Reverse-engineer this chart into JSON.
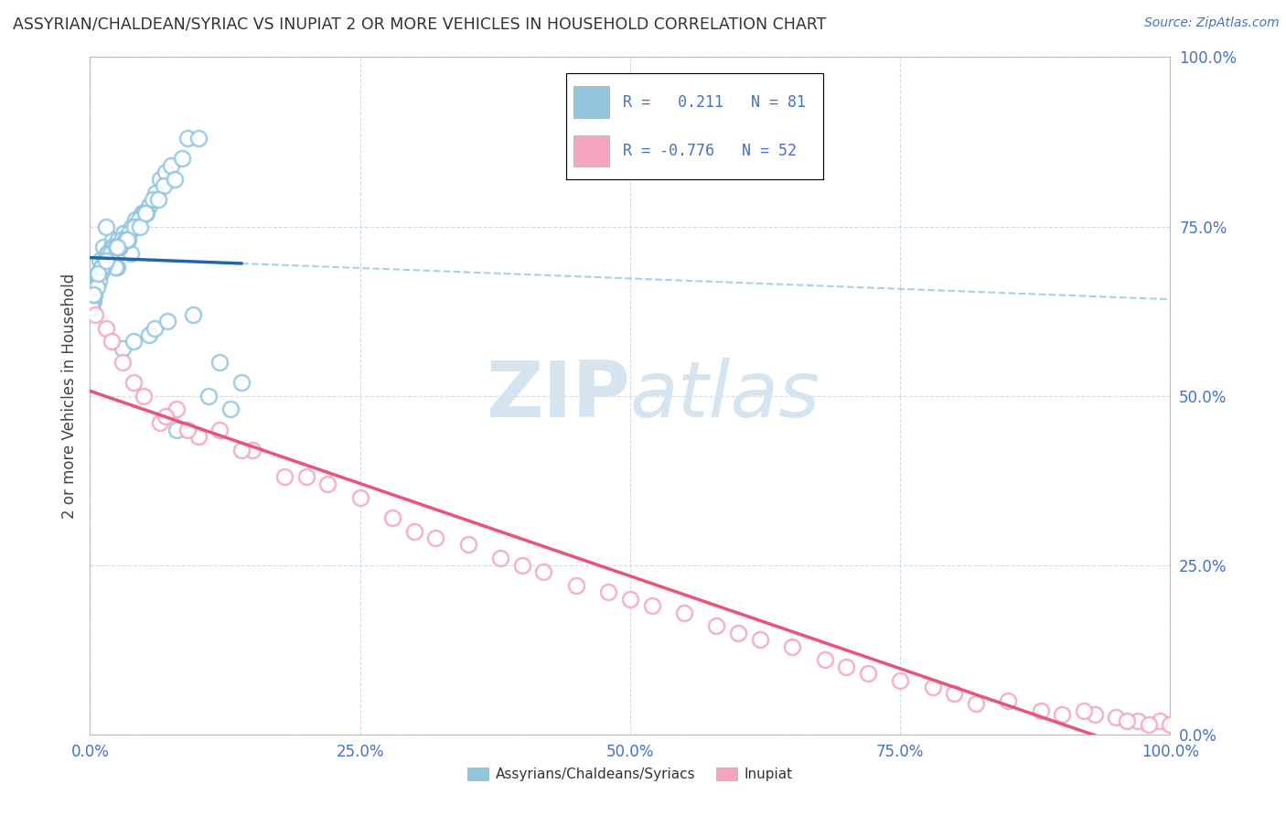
{
  "title": "ASSYRIAN/CHALDEAN/SYRIAC VS INUPIAT 2 OR MORE VEHICLES IN HOUSEHOLD CORRELATION CHART",
  "source": "Source: ZipAtlas.com",
  "ylabel": "2 or more Vehicles in Household",
  "legend_blue_label": "Assyrians/Chaldeans/Syriacs",
  "legend_pink_label": "Inupiat",
  "blue_R": 0.211,
  "blue_N": 81,
  "pink_R": -0.776,
  "pink_N": 52,
  "blue_color": "#92c5de",
  "pink_color": "#f4a6be",
  "blue_line_color": "#2166ac",
  "pink_line_color": "#e9537a",
  "dashed_line_color": "#92c5de",
  "watermark_color": "#d6e4f0",
  "tick_color": "#4472c4",
  "title_color": "#333333",
  "grid_color": "#c8d8e8",
  "blue_x": [
    0.5,
    1.2,
    2.5,
    3.8,
    0.3,
    1.8,
    2.1,
    0.8,
    1.5,
    3.2,
    0.2,
    0.9,
    1.1,
    2.8,
    4.2,
    5.5,
    6.1,
    0.4,
    0.7,
    1.6,
    0.1,
    0.6,
    1.3,
    2.3,
    3.5,
    4.8,
    6.5,
    0.3,
    0.5,
    1.0,
    1.4,
    2.0,
    2.6,
    3.1,
    3.9,
    5.0,
    7.0,
    0.2,
    0.8,
    1.7,
    2.2,
    2.9,
    3.6,
    4.5,
    5.8,
    7.5,
    9.0,
    0.1,
    0.4,
    1.2,
    1.9,
    2.4,
    3.3,
    4.1,
    5.2,
    6.8,
    8.5,
    0.6,
    1.1,
    2.7,
    3.4,
    4.6,
    5.1,
    6.3,
    7.8,
    10.0,
    0.3,
    0.7,
    1.5,
    2.5,
    3.0,
    4.0,
    5.5,
    6.0,
    7.2,
    8.0,
    9.5,
    11.0,
    12.0,
    13.0,
    14.0
  ],
  "blue_y": [
    67.0,
    72.0,
    69.0,
    71.0,
    64.0,
    70.0,
    73.0,
    68.0,
    75.0,
    74.0,
    66.0,
    70.0,
    69.0,
    72.0,
    76.0,
    78.0,
    80.0,
    65.0,
    68.0,
    71.0,
    63.0,
    67.0,
    70.0,
    69.0,
    73.0,
    77.0,
    82.0,
    65.0,
    66.0,
    68.0,
    70.0,
    72.0,
    73.0,
    74.0,
    75.0,
    77.0,
    83.0,
    64.0,
    67.0,
    71.0,
    72.0,
    73.0,
    74.0,
    76.0,
    79.0,
    84.0,
    88.0,
    63.0,
    65.0,
    69.0,
    71.0,
    72.0,
    73.0,
    75.0,
    77.0,
    81.0,
    85.0,
    66.0,
    69.0,
    72.0,
    73.0,
    75.0,
    77.0,
    79.0,
    82.0,
    88.0,
    65.0,
    68.0,
    70.0,
    72.0,
    57.0,
    58.0,
    59.0,
    60.0,
    61.0,
    45.0,
    62.0,
    50.0,
    55.0,
    48.0,
    52.0
  ],
  "pink_x": [
    0.5,
    1.5,
    3.0,
    5.0,
    8.0,
    12.0,
    2.0,
    4.0,
    6.5,
    10.0,
    15.0,
    20.0,
    7.0,
    9.0,
    14.0,
    18.0,
    25.0,
    30.0,
    22.0,
    28.0,
    35.0,
    40.0,
    32.0,
    38.0,
    45.0,
    50.0,
    42.0,
    48.0,
    55.0,
    60.0,
    52.0,
    58.0,
    65.0,
    70.0,
    62.0,
    68.0,
    75.0,
    80.0,
    72.0,
    78.0,
    85.0,
    90.0,
    82.0,
    88.0,
    93.0,
    95.0,
    97.0,
    99.0,
    100.0,
    92.0,
    96.0,
    98.0
  ],
  "pink_y": [
    62.0,
    60.0,
    55.0,
    50.0,
    48.0,
    45.0,
    58.0,
    52.0,
    46.0,
    44.0,
    42.0,
    38.0,
    47.0,
    45.0,
    42.0,
    38.0,
    35.0,
    30.0,
    37.0,
    32.0,
    28.0,
    25.0,
    29.0,
    26.0,
    22.0,
    20.0,
    24.0,
    21.0,
    18.0,
    15.0,
    19.0,
    16.0,
    13.0,
    10.0,
    14.0,
    11.0,
    8.0,
    6.0,
    9.0,
    7.0,
    5.0,
    3.0,
    4.5,
    3.5,
    3.0,
    2.5,
    2.0,
    2.0,
    1.5,
    3.5,
    2.0,
    1.5
  ],
  "xlim": [
    0,
    100
  ],
  "ylim": [
    0,
    100
  ],
  "xticks": [
    0,
    25,
    50,
    75,
    100
  ],
  "yticks": [
    0,
    25,
    50,
    75,
    100
  ],
  "xtick_labels": [
    "0.0%",
    "25.0%",
    "50.0%",
    "75.0%",
    "100.0%"
  ],
  "ytick_labels": [
    "0.0%",
    "25.0%",
    "50.0%",
    "75.0%",
    "100.0%"
  ]
}
